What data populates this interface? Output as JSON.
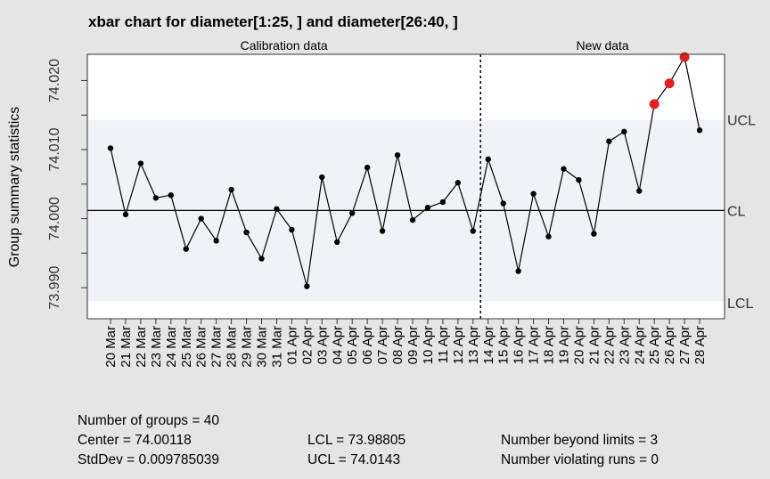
{
  "chart_data": {
    "type": "line",
    "title": "xbar chart for diameter[1:25, ] and diameter[26:40, ]",
    "ylabel": "Group summary statistics",
    "xlabel": "",
    "ylim": [
      73.9855,
      74.0238
    ],
    "yticks": [
      73.99,
      73.995,
      74.0,
      74.005,
      74.01,
      74.015,
      74.02
    ],
    "ytick_labels": [
      "73.990",
      "",
      "74.000",
      "",
      "74.010",
      "",
      "74.020"
    ],
    "sections": [
      "Calibration data",
      "New data"
    ],
    "calibration_count": 25,
    "categories": [
      "20 Mar",
      "21 Mar",
      "22 Mar",
      "23 Mar",
      "24 Mar",
      "25 Mar",
      "26 Mar",
      "27 Mar",
      "28 Mar",
      "29 Mar",
      "30 Mar",
      "31 Mar",
      "01 Apr",
      "02 Apr",
      "03 Apr",
      "04 Apr",
      "05 Apr",
      "06 Apr",
      "07 Apr",
      "08 Apr",
      "09 Apr",
      "10 Apr",
      "11 Apr",
      "12 Apr",
      "13 Apr",
      "14 Apr",
      "15 Apr",
      "16 Apr",
      "17 Apr",
      "18 Apr",
      "19 Apr",
      "20 Apr",
      "21 Apr",
      "22 Apr",
      "23 Apr",
      "24 Apr",
      "25 Apr",
      "26 Apr",
      "27 Apr",
      "28 Apr"
    ],
    "series": [
      {
        "values": [
          74.0102,
          74.0006,
          74.008,
          74.003,
          74.0034,
          73.9956,
          74.0,
          73.9968,
          74.0042,
          73.998,
          73.9942,
          74.0014,
          73.9984,
          73.9902,
          74.006,
          73.9966,
          74.0008,
          74.0074,
          73.9982,
          74.0092,
          73.9998,
          74.0016,
          74.0024,
          74.0052,
          73.9982,
          74.0086,
          74.0022,
          73.9924,
          74.0036,
          73.9974,
          74.0072,
          74.0056,
          73.9978,
          74.0112,
          74.0126,
          74.004,
          74.0166,
          74.0196,
          74.0234,
          74.0128
        ]
      }
    ],
    "center": 74.00118,
    "ucl": 74.0143,
    "lcl": 73.98805,
    "limit_labels": {
      "ucl": "UCL",
      "cl": "CL",
      "lcl": "LCL"
    },
    "colors": {
      "panel_bg": "#e5e5e5",
      "plot_bg": "#ffffff",
      "limits_band": "#f0f3f6",
      "point": "#000000",
      "violation": "#e02020"
    },
    "summary": {
      "groups": "Number of groups = 40",
      "center": "Center = 74.00118",
      "stddev": "StdDev = 0.009785039",
      "lcl": "LCL = 73.98805",
      "ucl": "UCL = 74.0143",
      "beyond": "Number beyond limits = 3",
      "runs": "Number violating runs = 0"
    }
  }
}
